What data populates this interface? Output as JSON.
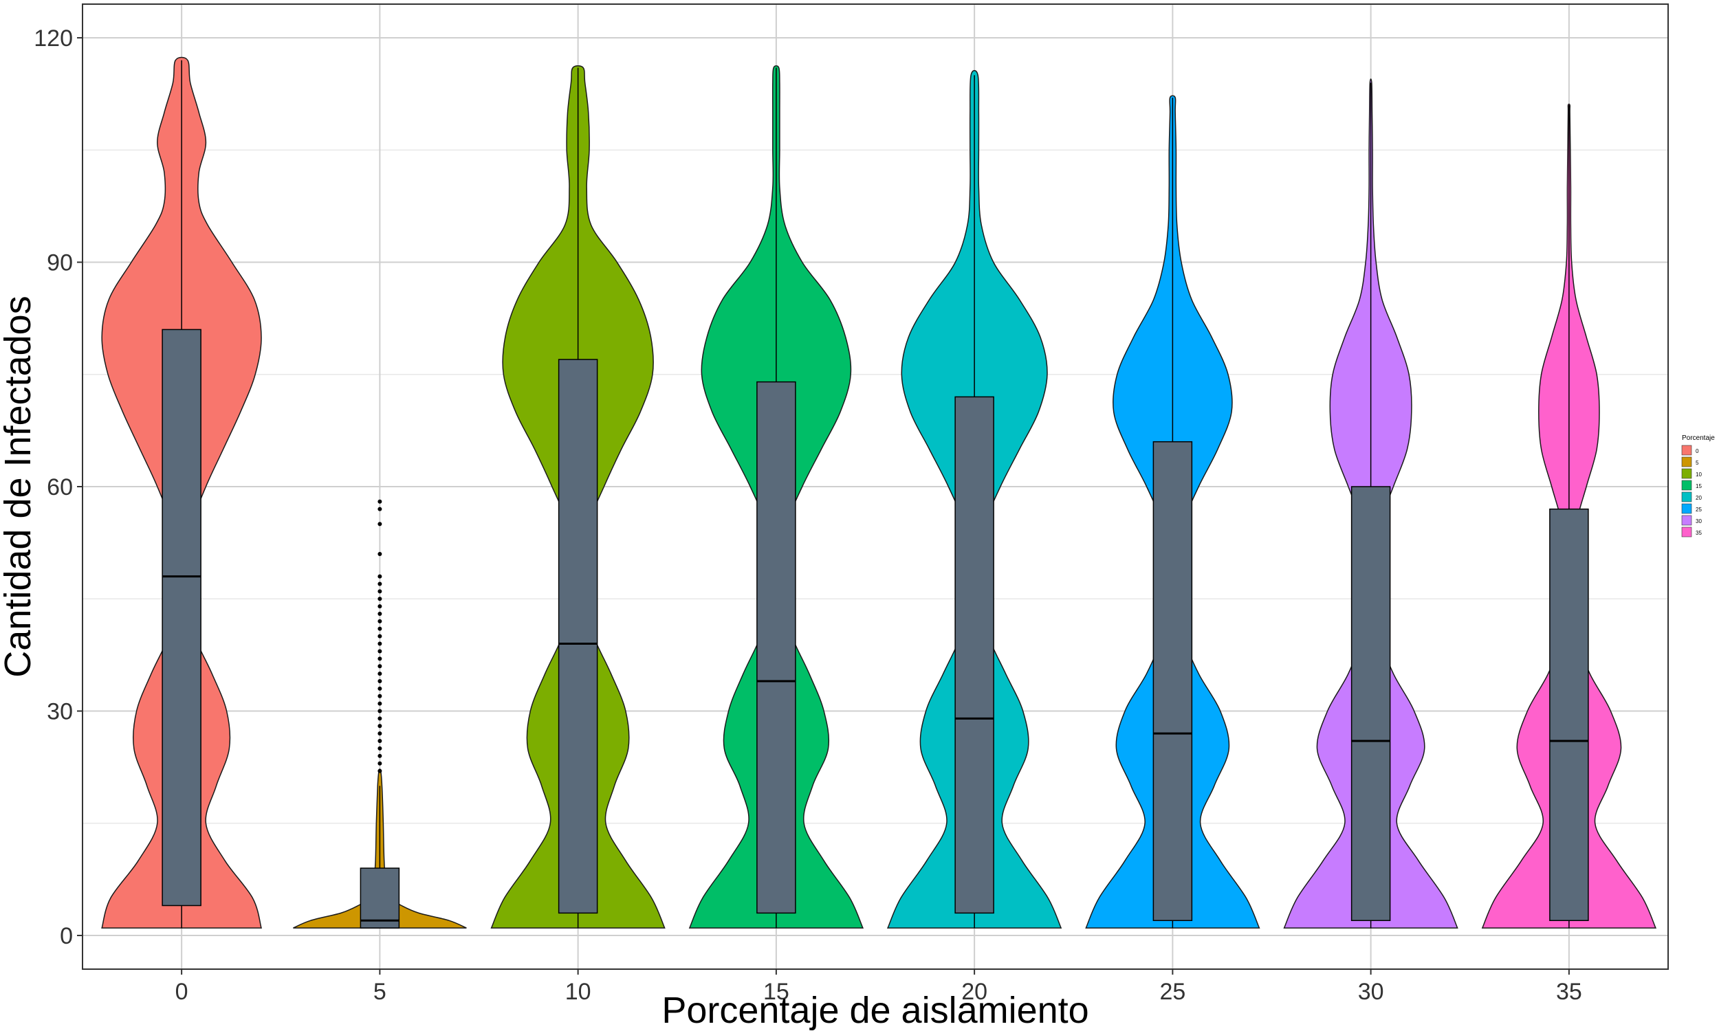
{
  "chart_data": {
    "type": "violin",
    "title": "",
    "xlabel": "Porcentaje de aislamiento",
    "ylabel": "Cantidad de Infectados",
    "ylim": [
      -4.5,
      124.5
    ],
    "yticks": [
      0,
      30,
      60,
      90,
      120
    ],
    "yticks_labels": [
      "0",
      "30",
      "60",
      "90",
      "120"
    ],
    "grid": true,
    "legend": {
      "title": "Porcentaje",
      "position": "right",
      "entries": [
        "0",
        "5",
        "10",
        "15",
        "20",
        "25",
        "30",
        "35"
      ]
    },
    "categories": [
      "0",
      "5",
      "10",
      "15",
      "20",
      "25",
      "30",
      "35"
    ],
    "colors": [
      "#F8766D",
      "#CD9600",
      "#7CAE00",
      "#00BE67",
      "#00BFC4",
      "#00A9FF",
      "#C77CFF",
      "#FF61CC"
    ],
    "box_fill": "#5A6A7A",
    "series": [
      {
        "name": "0",
        "ymin": 1,
        "ymax": 117,
        "box": {
          "q1": 4,
          "median": 48,
          "q3": 81,
          "whisker_low": 1,
          "whisker_high": 117
        },
        "density": [
          [
            1,
            0.92
          ],
          [
            5,
            0.82
          ],
          [
            10,
            0.5
          ],
          [
            15,
            0.28
          ],
          [
            20,
            0.4
          ],
          [
            25,
            0.55
          ],
          [
            30,
            0.52
          ],
          [
            35,
            0.35
          ],
          [
            40,
            0.15
          ],
          [
            45,
            0.05
          ],
          [
            50,
            0.06
          ],
          [
            55,
            0.12
          ],
          [
            60,
            0.28
          ],
          [
            65,
            0.48
          ],
          [
            70,
            0.68
          ],
          [
            75,
            0.85
          ],
          [
            80,
            0.92
          ],
          [
            85,
            0.84
          ],
          [
            90,
            0.58
          ],
          [
            95,
            0.3
          ],
          [
            98,
            0.2
          ],
          [
            102,
            0.2
          ],
          [
            106,
            0.28
          ],
          [
            110,
            0.2
          ],
          [
            114,
            0.1
          ],
          [
            117,
            0.07
          ]
        ]
      },
      {
        "name": "5",
        "ymin": 1,
        "ymax": 22,
        "box": {
          "q1": 1,
          "median": 2,
          "q3": 9,
          "whisker_low": 1,
          "whisker_high": 20
        },
        "outliers": [
          22,
          23,
          24,
          25,
          26,
          27,
          28,
          29,
          30,
          31,
          32,
          33,
          34,
          35,
          36,
          37,
          38,
          39,
          40,
          41,
          42,
          43,
          44,
          45,
          46,
          47,
          48,
          51,
          55,
          57,
          58
        ],
        "density": [
          [
            1,
            1.0
          ],
          [
            2,
            0.8
          ],
          [
            3,
            0.45
          ],
          [
            4,
            0.25
          ],
          [
            5,
            0.12
          ],
          [
            7,
            0.07
          ],
          [
            10,
            0.05
          ],
          [
            15,
            0.04
          ],
          [
            20,
            0.025
          ],
          [
            22,
            0.01
          ]
        ]
      },
      {
        "name": "10",
        "ymin": 1,
        "ymax": 116,
        "box": {
          "q1": 3,
          "median": 39,
          "q3": 77,
          "whisker_low": 1,
          "whisker_high": 116
        },
        "density": [
          [
            1,
            1.0
          ],
          [
            5,
            0.85
          ],
          [
            10,
            0.55
          ],
          [
            15,
            0.32
          ],
          [
            20,
            0.42
          ],
          [
            25,
            0.58
          ],
          [
            30,
            0.55
          ],
          [
            35,
            0.38
          ],
          [
            40,
            0.18
          ],
          [
            45,
            0.06
          ],
          [
            50,
            0.06
          ],
          [
            55,
            0.12
          ],
          [
            60,
            0.3
          ],
          [
            65,
            0.5
          ],
          [
            70,
            0.72
          ],
          [
            75,
            0.86
          ],
          [
            80,
            0.84
          ],
          [
            85,
            0.7
          ],
          [
            90,
            0.45
          ],
          [
            95,
            0.15
          ],
          [
            100,
            0.1
          ],
          [
            105,
            0.13
          ],
          [
            110,
            0.12
          ],
          [
            114,
            0.08
          ],
          [
            116,
            0.06
          ]
        ]
      },
      {
        "name": "15",
        "ymin": 1,
        "ymax": 116,
        "box": {
          "q1": 3,
          "median": 34,
          "q3": 74,
          "whisker_low": 1,
          "whisker_high": 116
        },
        "density": [
          [
            1,
            1.0
          ],
          [
            5,
            0.85
          ],
          [
            10,
            0.55
          ],
          [
            15,
            0.32
          ],
          [
            20,
            0.42
          ],
          [
            25,
            0.6
          ],
          [
            30,
            0.55
          ],
          [
            35,
            0.38
          ],
          [
            40,
            0.18
          ],
          [
            45,
            0.06
          ],
          [
            50,
            0.05
          ],
          [
            55,
            0.12
          ],
          [
            60,
            0.3
          ],
          [
            65,
            0.52
          ],
          [
            70,
            0.74
          ],
          [
            75,
            0.86
          ],
          [
            80,
            0.8
          ],
          [
            85,
            0.62
          ],
          [
            90,
            0.3
          ],
          [
            95,
            0.1
          ],
          [
            100,
            0.04
          ],
          [
            105,
            0.04
          ],
          [
            110,
            0.04
          ],
          [
            114,
            0.04
          ],
          [
            116,
            0.03
          ]
        ]
      },
      {
        "name": "20",
        "ymin": 1,
        "ymax": 115,
        "box": {
          "q1": 3,
          "median": 29,
          "q3": 72,
          "whisker_low": 1,
          "whisker_high": 115
        },
        "density": [
          [
            1,
            1.0
          ],
          [
            5,
            0.85
          ],
          [
            10,
            0.55
          ],
          [
            15,
            0.32
          ],
          [
            20,
            0.45
          ],
          [
            25,
            0.62
          ],
          [
            30,
            0.56
          ],
          [
            35,
            0.36
          ],
          [
            40,
            0.16
          ],
          [
            45,
            0.05
          ],
          [
            50,
            0.05
          ],
          [
            55,
            0.12
          ],
          [
            60,
            0.3
          ],
          [
            65,
            0.52
          ],
          [
            70,
            0.74
          ],
          [
            75,
            0.84
          ],
          [
            80,
            0.76
          ],
          [
            85,
            0.52
          ],
          [
            90,
            0.22
          ],
          [
            95,
            0.08
          ],
          [
            100,
            0.05
          ],
          [
            105,
            0.05
          ],
          [
            110,
            0.05
          ],
          [
            115,
            0.04
          ]
        ]
      },
      {
        "name": "25",
        "ymin": 1,
        "ymax": 112,
        "box": {
          "q1": 2,
          "median": 27,
          "q3": 66,
          "whisker_low": 1,
          "whisker_high": 112
        },
        "density": [
          [
            1,
            1.0
          ],
          [
            5,
            0.85
          ],
          [
            10,
            0.55
          ],
          [
            15,
            0.32
          ],
          [
            20,
            0.48
          ],
          [
            25,
            0.65
          ],
          [
            30,
            0.55
          ],
          [
            35,
            0.3
          ],
          [
            40,
            0.12
          ],
          [
            45,
            0.04
          ],
          [
            50,
            0.05
          ],
          [
            55,
            0.12
          ],
          [
            60,
            0.3
          ],
          [
            65,
            0.52
          ],
          [
            70,
            0.68
          ],
          [
            75,
            0.64
          ],
          [
            80,
            0.45
          ],
          [
            85,
            0.22
          ],
          [
            90,
            0.1
          ],
          [
            95,
            0.05
          ],
          [
            100,
            0.04
          ],
          [
            105,
            0.04
          ],
          [
            110,
            0.03
          ],
          [
            112,
            0.03
          ]
        ]
      },
      {
        "name": "30",
        "ymin": 1,
        "ymax": 114,
        "box": {
          "q1": 2,
          "median": 26,
          "q3": 60,
          "whisker_low": 1,
          "whisker_high": 114
        },
        "density": [
          [
            1,
            1.0
          ],
          [
            5,
            0.85
          ],
          [
            10,
            0.55
          ],
          [
            15,
            0.3
          ],
          [
            20,
            0.45
          ],
          [
            25,
            0.62
          ],
          [
            30,
            0.5
          ],
          [
            35,
            0.26
          ],
          [
            40,
            0.1
          ],
          [
            45,
            0.04
          ],
          [
            50,
            0.04
          ],
          [
            55,
            0.1
          ],
          [
            60,
            0.26
          ],
          [
            65,
            0.42
          ],
          [
            70,
            0.47
          ],
          [
            75,
            0.44
          ],
          [
            80,
            0.3
          ],
          [
            85,
            0.13
          ],
          [
            90,
            0.06
          ],
          [
            95,
            0.03
          ],
          [
            100,
            0.02
          ],
          [
            105,
            0.02
          ],
          [
            110,
            0.015
          ],
          [
            114,
            0.01
          ]
        ]
      },
      {
        "name": "35",
        "ymin": 1,
        "ymax": 111,
        "box": {
          "q1": 2,
          "median": 26,
          "q3": 57,
          "whisker_low": 1,
          "whisker_high": 111
        },
        "density": [
          [
            1,
            1.0
          ],
          [
            5,
            0.85
          ],
          [
            10,
            0.55
          ],
          [
            15,
            0.3
          ],
          [
            20,
            0.45
          ],
          [
            25,
            0.6
          ],
          [
            30,
            0.48
          ],
          [
            35,
            0.24
          ],
          [
            40,
            0.08
          ],
          [
            45,
            0.03
          ],
          [
            50,
            0.03
          ],
          [
            55,
            0.08
          ],
          [
            60,
            0.2
          ],
          [
            65,
            0.32
          ],
          [
            70,
            0.35
          ],
          [
            75,
            0.32
          ],
          [
            80,
            0.2
          ],
          [
            85,
            0.08
          ],
          [
            90,
            0.03
          ],
          [
            95,
            0.02
          ],
          [
            100,
            0.02
          ],
          [
            105,
            0.015
          ],
          [
            110,
            0.01
          ],
          [
            111,
            0.01
          ]
        ]
      }
    ]
  }
}
